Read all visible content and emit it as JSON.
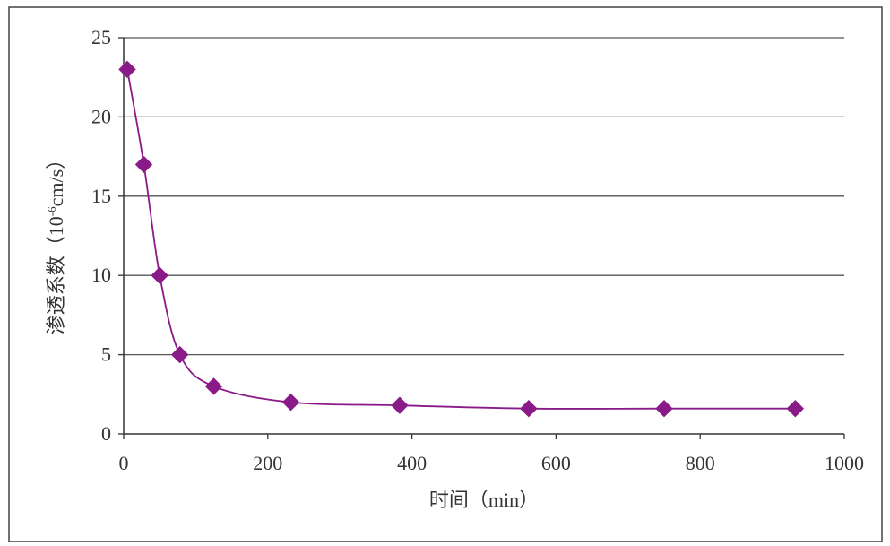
{
  "chart_data": {
    "type": "line",
    "title": "",
    "xlabel": "时间（min）",
    "ylabel_main": "渗透系数（10",
    "ylabel_exp": "-6",
    "ylabel_unit": "cm/s）",
    "xlim": [
      0,
      1000
    ],
    "ylim": [
      0,
      25
    ],
    "x_ticks": [
      "0",
      "200",
      "400",
      "600",
      "800",
      "1000"
    ],
    "y_ticks": [
      "0",
      "5",
      "10",
      "15",
      "20",
      "25"
    ],
    "grid": "horizontal",
    "legend": "none",
    "marker": "diamond",
    "series": [
      {
        "x": [
          5,
          28,
          50,
          78,
          125,
          232,
          383,
          562,
          750,
          932
        ],
        "y": [
          23,
          17,
          10,
          5,
          3,
          2,
          1.8,
          1.6,
          1.6,
          1.6
        ]
      }
    ],
    "colors": {
      "series": "#8B1A89",
      "grid": "#555555",
      "axis": "#333333",
      "text": "#333333",
      "border": "#444444"
    }
  }
}
